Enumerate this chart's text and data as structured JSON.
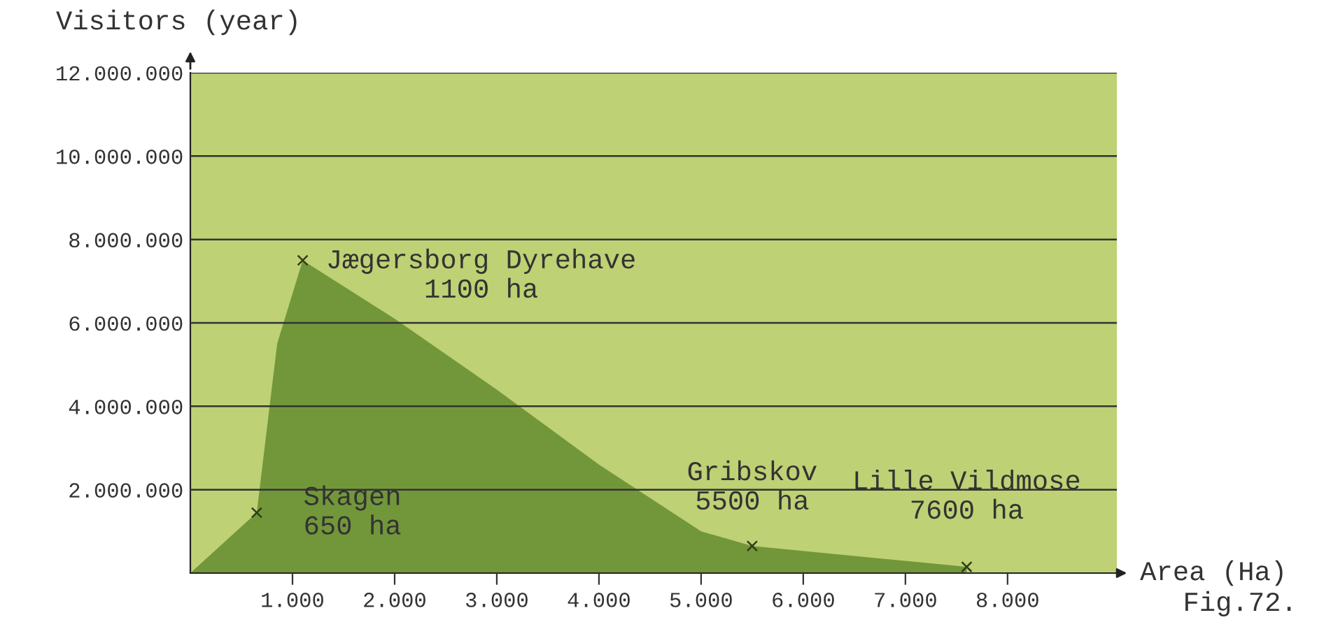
{
  "chart_data": {
    "type": "area",
    "xlabel": "Area (Ha)",
    "ylabel": "Visitors (year)",
    "xlim": [
      0,
      9070
    ],
    "ylim": [
      0,
      12000000
    ],
    "xticks": [
      {
        "value": 1000,
        "label": "1.000"
      },
      {
        "value": 2000,
        "label": "2.000"
      },
      {
        "value": 3000,
        "label": "3.000"
      },
      {
        "value": 4000,
        "label": "4.000"
      },
      {
        "value": 5000,
        "label": "5.000"
      },
      {
        "value": 6000,
        "label": "6.000"
      },
      {
        "value": 7000,
        "label": "7.000"
      },
      {
        "value": 8000,
        "label": "8.000"
      }
    ],
    "yticks": [
      {
        "value": 2000000,
        "label": "2.000.000"
      },
      {
        "value": 4000000,
        "label": "4.000.000"
      },
      {
        "value": 6000000,
        "label": "6.000.000"
      },
      {
        "value": 8000000,
        "label": "8.000.000"
      },
      {
        "value": 10000000,
        "label": "10.000.000"
      },
      {
        "value": 12000000,
        "label": "12.000.000"
      }
    ],
    "grid": "y",
    "series": [
      {
        "type": "area",
        "color": "#72973a",
        "x": [
          0,
          650,
          850,
          1100,
          2000,
          3000,
          4000,
          5000,
          5500,
          7600
        ],
        "values": [
          0,
          1450000,
          5500000,
          7500000,
          6100000,
          4400000,
          2600000,
          1000000,
          650000,
          150000
        ]
      },
      {
        "type": "scatter",
        "color": "#2f3d1a",
        "marker": "cross",
        "x": [
          650,
          1100,
          5500,
          7600
        ],
        "values": [
          1450000,
          7500000,
          650000,
          150000
        ]
      }
    ],
    "annotations": [
      {
        "text": "Skagen\n650 ha",
        "x": 650,
        "y": 1450000
      },
      {
        "text": "Jægersborg Dyrehave\n1100 ha",
        "x": 1100,
        "y": 7500000
      },
      {
        "text": "Gribskov\n5500 ha",
        "x": 5500,
        "y": 650000
      },
      {
        "text": "Lille Vildmose\n7600 ha",
        "x": 7600,
        "y": 150000
      },
      "Fig.72."
    ]
  }
}
